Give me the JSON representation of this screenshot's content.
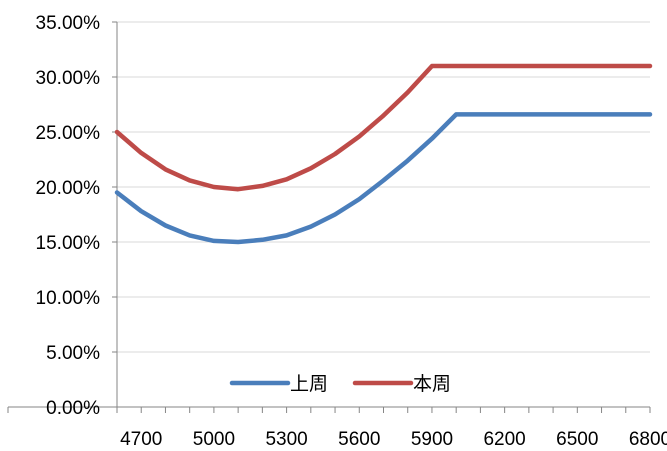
{
  "chart_data": {
    "type": "line",
    "title": "",
    "xlabel": "",
    "ylabel": "",
    "x": [
      4600,
      4700,
      4800,
      4900,
      5000,
      5100,
      5200,
      5300,
      5400,
      5500,
      5600,
      5700,
      5800,
      5900,
      6000,
      6100,
      6200,
      6300,
      6400,
      6500,
      6600,
      6700,
      6800
    ],
    "x_tick_labels": [
      "4700",
      "5000",
      "5300",
      "5600",
      "5900",
      "6200",
      "6500",
      "6800"
    ],
    "x_tick_values": [
      4700,
      5000,
      5300,
      5600,
      5900,
      6200,
      6500,
      6800
    ],
    "y_tick_labels": [
      "0.00%",
      "5.00%",
      "10.00%",
      "15.00%",
      "20.00%",
      "25.00%",
      "30.00%",
      "35.00%"
    ],
    "y_tick_values": [
      0,
      5,
      10,
      15,
      20,
      25,
      30,
      35
    ],
    "ylim": [
      0,
      35
    ],
    "y_unit": "%",
    "grid": "horizontal",
    "legend_position": "bottom-center",
    "series": [
      {
        "name": "上周",
        "color": "#4a7ebb",
        "values": [
          19.5,
          17.8,
          16.5,
          15.6,
          15.1,
          15.0,
          15.2,
          15.6,
          16.4,
          17.5,
          18.9,
          20.6,
          22.4,
          24.4,
          26.6,
          26.6,
          26.6,
          26.6,
          26.6,
          26.6,
          26.6,
          26.6,
          26.6
        ]
      },
      {
        "name": "本周",
        "color": "#be4b48",
        "values": [
          25.0,
          23.1,
          21.6,
          20.6,
          20.0,
          19.8,
          20.1,
          20.7,
          21.7,
          23.0,
          24.6,
          26.5,
          28.6,
          31.0,
          31.0,
          31.0,
          31.0,
          31.0,
          31.0,
          31.0,
          31.0,
          31.0,
          31.0
        ]
      }
    ]
  }
}
